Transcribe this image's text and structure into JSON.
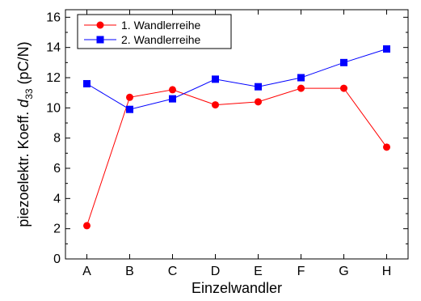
{
  "chart_data": {
    "type": "line",
    "categories": [
      "A",
      "B",
      "C",
      "D",
      "E",
      "F",
      "G",
      "H"
    ],
    "series": [
      {
        "name": "1. Wandlerreihe",
        "color": "#ff0000",
        "marker": "circle",
        "values": [
          2.2,
          10.7,
          11.2,
          10.2,
          10.4,
          11.3,
          11.3,
          7.4
        ]
      },
      {
        "name": "2. Wandlerreihe",
        "color": "#0000ff",
        "marker": "square",
        "values": [
          11.6,
          9.9,
          10.6,
          11.9,
          11.4,
          12.0,
          13.0,
          13.9
        ]
      }
    ],
    "xlabel": "Einzelwandler",
    "ylabel": {
      "main": "piezoelektr. Koeff. ",
      "symbol": "d",
      "subscript": "33",
      "unit": " (pC/N)"
    },
    "ylim": [
      0,
      16.5
    ],
    "yticks": [
      0,
      2,
      4,
      6,
      8,
      10,
      12,
      14,
      16
    ],
    "grid": false,
    "legend_position": "top-left"
  }
}
